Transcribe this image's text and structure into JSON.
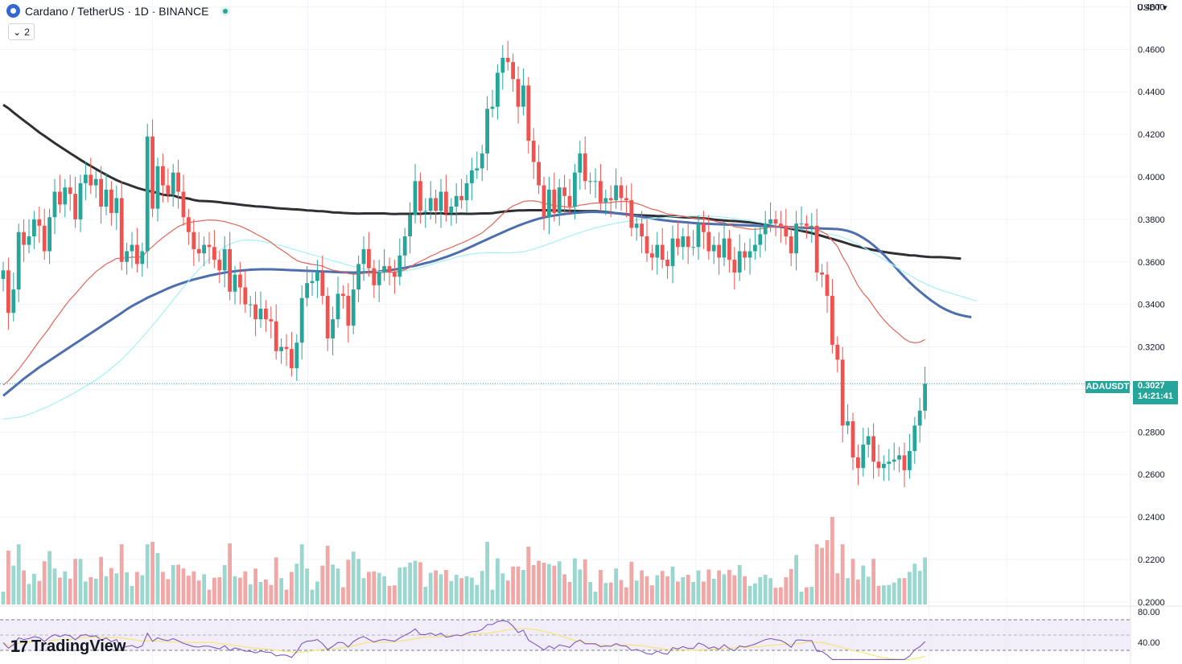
{
  "header": {
    "title": "Cardano / TetherUS · 1D · BINANCE",
    "indicator_count": "2",
    "currency": "USDT"
  },
  "brand": {
    "name": "TradingView"
  },
  "price_tag": {
    "symbol": "ADAUSDT",
    "price": "0.3027",
    "countdown": "14:21:41"
  },
  "colors": {
    "up": "#26a69a",
    "down": "#ef5350",
    "ma_black": "#2f3034",
    "ma_blue": "#4e6eae",
    "ma_cyan": "#a5f0f3",
    "ma_red": "#e0665b",
    "rsi": "#7e57c2",
    "rsi_ma": "#f5e57c"
  },
  "chart_data": {
    "type": "candlestick",
    "symbol": "ADAUSDT",
    "interval": "1D",
    "exchange": "BINANCE",
    "ylim": [
      0.1988,
      0.4832
    ],
    "y_ticks": [
      "0.4800",
      "0.4600",
      "0.4400",
      "0.4200",
      "0.4000",
      "0.3800",
      "0.3600",
      "0.3400",
      "0.3200",
      "0.3000",
      "0.2800",
      "0.2600",
      "0.2400",
      "0.2200",
      "0.2000"
    ],
    "current_price": 0.3027,
    "close": [
      0.356,
      0.336,
      0.347,
      0.374,
      0.368,
      0.372,
      0.38,
      0.377,
      0.365,
      0.381,
      0.393,
      0.387,
      0.395,
      0.392,
      0.38,
      0.397,
      0.401,
      0.396,
      0.399,
      0.386,
      0.394,
      0.383,
      0.39,
      0.36,
      0.365,
      0.368,
      0.359,
      0.365,
      0.419,
      0.385,
      0.405,
      0.396,
      0.392,
      0.402,
      0.393,
      0.381,
      0.374,
      0.366,
      0.364,
      0.368,
      0.367,
      0.361,
      0.356,
      0.366,
      0.346,
      0.354,
      0.348,
      0.34,
      0.34,
      0.333,
      0.338,
      0.333,
      0.332,
      0.318,
      0.32,
      0.319,
      0.31,
      0.322,
      0.343,
      0.35,
      0.351,
      0.355,
      0.344,
      0.324,
      0.333,
      0.345,
      0.344,
      0.33,
      0.347,
      0.359,
      0.366,
      0.357,
      0.349,
      0.355,
      0.358,
      0.355,
      0.353,
      0.363,
      0.372,
      0.382,
      0.398,
      0.384,
      0.384,
      0.39,
      0.384,
      0.393,
      0.383,
      0.386,
      0.391,
      0.389,
      0.397,
      0.403,
      0.404,
      0.411,
      0.432,
      0.433,
      0.449,
      0.456,
      0.454,
      0.446,
      0.433,
      0.443,
      0.417,
      0.407,
      0.396,
      0.381,
      0.394,
      0.383,
      0.395,
      0.391,
      0.386,
      0.402,
      0.411,
      0.398,
      0.398,
      0.398,
      0.388,
      0.39,
      0.389,
      0.396,
      0.39,
      0.389,
      0.376,
      0.378,
      0.372,
      0.364,
      0.362,
      0.368,
      0.361,
      0.358,
      0.371,
      0.367,
      0.372,
      0.367,
      0.367,
      0.378,
      0.374,
      0.365,
      0.368,
      0.362,
      0.371,
      0.361,
      0.355,
      0.365,
      0.362,
      0.365,
      0.368,
      0.373,
      0.378,
      0.38,
      0.378,
      0.377,
      0.372,
      0.364,
      0.378,
      0.378,
      0.377,
      0.377,
      0.355,
      0.354,
      0.344,
      0.321,
      0.314,
      0.283,
      0.285,
      0.268,
      0.263,
      0.274,
      0.278,
      0.266,
      0.263,
      0.265,
      0.266,
      0.267,
      0.269,
      0.262,
      0.271,
      0.283,
      0.29,
      0.3027
    ],
    "series": [
      {
        "name": "MA black",
        "values": [
          0.4339,
          0.4323,
          0.4303,
          0.4284,
          0.4265,
          0.4247,
          0.4228,
          0.4209,
          0.4193,
          0.4176,
          0.4159,
          0.4143,
          0.4127,
          0.4111,
          0.4096,
          0.408,
          0.4065,
          0.4051,
          0.4037,
          0.4023,
          0.401,
          0.3997,
          0.3985,
          0.3974,
          0.3966,
          0.3957,
          0.3948,
          0.3941,
          0.3935,
          0.393,
          0.3924,
          0.3916,
          0.3913,
          0.3913,
          0.3904,
          0.39,
          0.3898,
          0.3891,
          0.3887,
          0.3886,
          0.3885,
          0.3883,
          0.3881,
          0.3877,
          0.3875,
          0.3872,
          0.3869,
          0.3866,
          0.3864,
          0.3861,
          0.386,
          0.3858,
          0.3856,
          0.3853,
          0.3851,
          0.385,
          0.3848,
          0.3847,
          0.3845,
          0.3842,
          0.3841,
          0.3839,
          0.3838,
          0.3836,
          0.3833,
          0.3832,
          0.383,
          0.3829,
          0.3828,
          0.3827,
          0.3828,
          0.3828,
          0.3828,
          0.3828,
          0.3828,
          0.3826,
          0.3825,
          0.3826,
          0.3826,
          0.3826,
          0.3827,
          0.3826,
          0.3828,
          0.3828,
          0.3827,
          0.3829,
          0.3826,
          0.3826,
          0.3826,
          0.3827,
          0.3826,
          0.3826,
          0.3827,
          0.3828,
          0.3828,
          0.3829,
          0.3833,
          0.3836,
          0.3838,
          0.384,
          0.3842,
          0.3842,
          0.3843,
          0.3843,
          0.3843,
          0.3843,
          0.3842,
          0.3842,
          0.3841,
          0.3841,
          0.384,
          0.384,
          0.3839,
          0.3839,
          0.3839,
          0.3839,
          0.3837,
          0.3835,
          0.3832,
          0.3829,
          0.3827,
          0.3824,
          0.3822,
          0.382,
          0.3819,
          0.3818,
          0.3817,
          0.3815,
          0.3815,
          0.3814,
          0.3813,
          0.3812,
          0.381,
          0.3809,
          0.3808,
          0.3806,
          0.3805,
          0.3802,
          0.3799,
          0.3797,
          0.3795,
          0.3793,
          0.3792,
          0.379,
          0.3788,
          0.3786,
          0.3783,
          0.3781,
          0.3777,
          0.3773,
          0.3769,
          0.3765,
          0.3761,
          0.3756,
          0.3751,
          0.3746,
          0.3741,
          0.3735,
          0.3729,
          0.3722,
          0.3715,
          0.3708,
          0.3701,
          0.3694,
          0.3686,
          0.3678,
          0.3672,
          0.3666,
          0.3661,
          0.3656,
          0.3651,
          0.3647,
          0.3643,
          0.364,
          0.3637,
          0.3634,
          0.3631,
          0.363,
          0.3627,
          0.3625,
          0.3623,
          0.3622,
          0.3622,
          0.3621,
          0.3619,
          0.3617,
          0.3615
        ]
      },
      {
        "name": "MA blue",
        "values": [
          0.297,
          0.299,
          0.301,
          0.303,
          0.305,
          0.3068,
          0.3086,
          0.3104,
          0.312,
          0.3136,
          0.3152,
          0.3168,
          0.3184,
          0.32,
          0.3216,
          0.3232,
          0.3248,
          0.3264,
          0.328,
          0.3296,
          0.3312,
          0.3328,
          0.3344,
          0.336,
          0.3377,
          0.3392,
          0.3405,
          0.3418,
          0.3431,
          0.3442,
          0.3453,
          0.3464,
          0.3475,
          0.3485,
          0.3494,
          0.3502,
          0.351,
          0.3517,
          0.3523,
          0.3529,
          0.3535,
          0.354,
          0.3545,
          0.3549,
          0.3553,
          0.3556,
          0.3559,
          0.3561,
          0.3563,
          0.3564,
          0.3565,
          0.3565,
          0.3565,
          0.3564,
          0.3563,
          0.3562,
          0.3561,
          0.356,
          0.3559,
          0.3558,
          0.3557,
          0.3556,
          0.3555,
          0.3554,
          0.3553,
          0.3552,
          0.3551,
          0.355,
          0.355,
          0.355,
          0.3551,
          0.3552,
          0.3553,
          0.3555,
          0.3558,
          0.3561,
          0.3564,
          0.3568,
          0.3572,
          0.3577,
          0.3582,
          0.3588,
          0.3594,
          0.36,
          0.3607,
          0.3615,
          0.3623,
          0.3632,
          0.3641,
          0.3651,
          0.3662,
          0.3673,
          0.3684,
          0.3695,
          0.3706,
          0.3717,
          0.3728,
          0.3739,
          0.375,
          0.376,
          0.377,
          0.3779,
          0.3788,
          0.3796,
          0.3803,
          0.3809,
          0.3814,
          0.3818,
          0.3822,
          0.3825,
          0.3828,
          0.383,
          0.3832,
          0.3834,
          0.3835,
          0.3835,
          0.3834,
          0.3833,
          0.3831,
          0.3829,
          0.3826,
          0.3823,
          0.382,
          0.3816,
          0.3812,
          0.3808,
          0.3804,
          0.38,
          0.3797,
          0.3794,
          0.3791,
          0.3789,
          0.3787,
          0.3785,
          0.3783,
          0.3781,
          0.378,
          0.3779,
          0.3778,
          0.3777,
          0.3776,
          0.3775,
          0.3774,
          0.3773,
          0.3772,
          0.3771,
          0.377,
          0.3769,
          0.3768,
          0.3767,
          0.3766,
          0.3765,
          0.3764,
          0.3763,
          0.3762,
          0.3761,
          0.376,
          0.3759,
          0.3758,
          0.3757,
          0.3756,
          0.3755,
          0.3754,
          0.3751,
          0.3746,
          0.3738,
          0.3727,
          0.3713,
          0.3697,
          0.3678,
          0.3657,
          0.3634,
          0.3608,
          0.3582,
          0.3555,
          0.3529,
          0.3505,
          0.3482,
          0.3461,
          0.3441,
          0.3422,
          0.3405,
          0.3389,
          0.3376,
          0.3365,
          0.3356,
          0.3349,
          0.3344,
          0.334
        ]
      },
      {
        "name": "MA cyan",
        "values": [
          0.286,
          0.2863,
          0.2866,
          0.2869,
          0.2875,
          0.2883,
          0.2892,
          0.2902,
          0.2912,
          0.2923,
          0.2935,
          0.2947,
          0.296,
          0.2973,
          0.2986,
          0.3,
          0.3015,
          0.303,
          0.3045,
          0.3062,
          0.308,
          0.31,
          0.312,
          0.3142,
          0.3166,
          0.3191,
          0.3217,
          0.3244,
          0.3272,
          0.3301,
          0.333,
          0.336,
          0.339,
          0.3421,
          0.3451,
          0.348,
          0.3509,
          0.3538,
          0.3565,
          0.359,
          0.3613,
          0.3634,
          0.3653,
          0.367,
          0.3683,
          0.3693,
          0.37,
          0.3703,
          0.3703,
          0.3701,
          0.3698,
          0.3693,
          0.3688,
          0.3682,
          0.3676,
          0.3669,
          0.3662,
          0.3655,
          0.3648,
          0.3641,
          0.3634,
          0.3627,
          0.362,
          0.3613,
          0.3606,
          0.3599,
          0.3592,
          0.3585,
          0.3579,
          0.3573,
          0.3567,
          0.3562,
          0.3558,
          0.3555,
          0.3553,
          0.3552,
          0.3553,
          0.3555,
          0.3558,
          0.3562,
          0.3567,
          0.3573,
          0.358,
          0.3587,
          0.3594,
          0.3601,
          0.3608,
          0.3615,
          0.3622,
          0.3628,
          0.3633,
          0.3637,
          0.364,
          0.3642,
          0.3643,
          0.3643,
          0.3643,
          0.3642,
          0.3642,
          0.3643,
          0.3645,
          0.3648,
          0.3653,
          0.366,
          0.3668,
          0.3676,
          0.3685,
          0.3694,
          0.3703,
          0.3712,
          0.3721,
          0.373,
          0.3738,
          0.3746,
          0.3753,
          0.376,
          0.3766,
          0.3772,
          0.3777,
          0.3782,
          0.3786,
          0.379,
          0.3794,
          0.3797,
          0.38,
          0.3802,
          0.3804,
          0.3806,
          0.3808,
          0.381,
          0.3812,
          0.3813,
          0.3814,
          0.3815,
          0.3816,
          0.3816,
          0.3816,
          0.3815,
          0.3814,
          0.3812,
          0.381,
          0.3807,
          0.3804,
          0.3801,
          0.3797,
          0.3793,
          0.3789,
          0.3785,
          0.3781,
          0.3777,
          0.3773,
          0.3769,
          0.3765,
          0.3761,
          0.3757,
          0.3753,
          0.3749,
          0.3745,
          0.3741,
          0.3737,
          0.3733,
          0.3729,
          0.3723,
          0.3715,
          0.3706,
          0.3695,
          0.3683,
          0.367,
          0.3656,
          0.3642,
          0.3627,
          0.3612,
          0.3597,
          0.3582,
          0.3567,
          0.3552,
          0.3537,
          0.3523,
          0.351,
          0.3498,
          0.3487,
          0.3477,
          0.3468,
          0.346,
          0.3453,
          0.3445,
          0.3438,
          0.343,
          0.3423,
          0.3415
        ]
      },
      {
        "name": "MA red",
        "values": [
          0.302,
          0.304,
          0.3067,
          0.3095,
          0.3127,
          0.3159,
          0.3194,
          0.3228,
          0.3258,
          0.3291,
          0.3327,
          0.3359,
          0.3393,
          0.3424,
          0.3449,
          0.3477,
          0.3506,
          0.353,
          0.3554,
          0.3571,
          0.359,
          0.3602,
          0.3616,
          0.3617,
          0.3619,
          0.3622,
          0.3622,
          0.3624,
          0.3652,
          0.3672,
          0.3694,
          0.3714,
          0.3732,
          0.375,
          0.3766,
          0.3777,
          0.3784,
          0.3789,
          0.3792,
          0.3795,
          0.3797,
          0.3796,
          0.3793,
          0.379,
          0.3782,
          0.3776,
          0.3768,
          0.3757,
          0.3746,
          0.3732,
          0.372,
          0.3706,
          0.3692,
          0.3673,
          0.3657,
          0.3641,
          0.3622,
          0.3607,
          0.3598,
          0.3593,
          0.3588,
          0.3585,
          0.358,
          0.3569,
          0.3561,
          0.3557,
          0.3553,
          0.3545,
          0.3542,
          0.3543,
          0.3546,
          0.3548,
          0.3547,
          0.3548,
          0.3551,
          0.3552,
          0.3552,
          0.3556,
          0.3563,
          0.3574,
          0.3591,
          0.3603,
          0.3614,
          0.3627,
          0.3637,
          0.365,
          0.3659,
          0.3668,
          0.3679,
          0.3688,
          0.3699,
          0.3711,
          0.3723,
          0.3736,
          0.3757,
          0.3777,
          0.3801,
          0.3825,
          0.3847,
          0.3863,
          0.3873,
          0.3884,
          0.3887,
          0.3887,
          0.3883,
          0.3874,
          0.3872,
          0.3864,
          0.3863,
          0.386,
          0.3855,
          0.386,
          0.3867,
          0.387,
          0.3874,
          0.3877,
          0.3877,
          0.3878,
          0.3879,
          0.3883,
          0.3884,
          0.3885,
          0.3879,
          0.3875,
          0.3867,
          0.3857,
          0.3848,
          0.3843,
          0.3834,
          0.3825,
          0.3823,
          0.3818,
          0.3815,
          0.381,
          0.3806,
          0.3806,
          0.3804,
          0.3797,
          0.3793,
          0.3786,
          0.3784,
          0.3776,
          0.3765,
          0.3762,
          0.3758,
          0.3754,
          0.3753,
          0.3755,
          0.3759,
          0.3764,
          0.3767,
          0.3769,
          0.3768,
          0.3763,
          0.3764,
          0.3765,
          0.3765,
          0.3766,
          0.3753,
          0.3742,
          0.3728,
          0.37,
          0.3673,
          0.3624,
          0.3584,
          0.3534,
          0.3487,
          0.3453,
          0.3426,
          0.3391,
          0.3357,
          0.3328,
          0.3302,
          0.3279,
          0.326,
          0.3238,
          0.3224,
          0.3219,
          0.3222,
          0.3235
        ]
      }
    ],
    "volume_pane": {
      "up_color": "#9ad7cf",
      "down_color": "#f2a7a7",
      "ylim": [
        0,
        100
      ]
    },
    "rsi_pane": {
      "ticks": [
        "80.00",
        "40.00"
      ],
      "band_color": "#ede7f6"
    }
  }
}
